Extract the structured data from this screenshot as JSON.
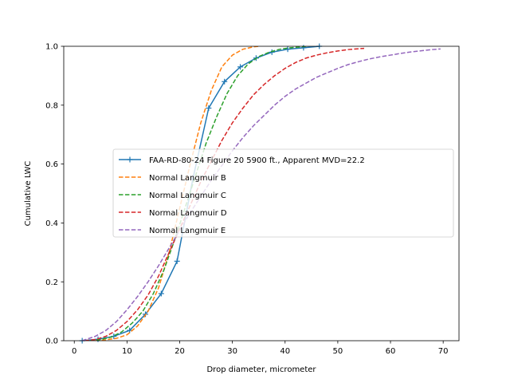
{
  "chart_data": {
    "type": "line",
    "title": "",
    "xlabel": "Drop diameter, micrometer",
    "ylabel": "Cumulative LWC",
    "xlim": [
      -2,
      73
    ],
    "ylim": [
      0,
      1.0
    ],
    "xticks": [
      0,
      10,
      20,
      30,
      40,
      50,
      60,
      70
    ],
    "yticks": [
      0.0,
      0.2,
      0.4,
      0.6,
      0.8,
      1.0
    ],
    "grid": false,
    "legend_position": "center-right",
    "series": [
      {
        "name": "FAA-RD-80-24 Figure 20 5900 ft., Apparent MVD=22.2",
        "color": "#1f77b4",
        "style": "solid",
        "marker": "+",
        "x": [
          1.5,
          4.5,
          7.5,
          10.5,
          13.5,
          16.5,
          19.5,
          22.5,
          25.5,
          28.5,
          31.5,
          34.5,
          37.5,
          40.5,
          43.5,
          46.5
        ],
        "y": [
          0.0,
          0.005,
          0.015,
          0.035,
          0.09,
          0.16,
          0.27,
          0.55,
          0.79,
          0.88,
          0.93,
          0.96,
          0.98,
          0.99,
          0.995,
          1.0
        ]
      },
      {
        "name": "Normal Langmuir B",
        "color": "#ff7f0e",
        "style": "dashed",
        "x": [
          4,
          6,
          8,
          10,
          12,
          14,
          16,
          18,
          20,
          22,
          24,
          26,
          28,
          30,
          32,
          34,
          35
        ],
        "y": [
          0.0,
          0.003,
          0.008,
          0.02,
          0.05,
          0.1,
          0.18,
          0.3,
          0.45,
          0.6,
          0.74,
          0.85,
          0.93,
          0.97,
          0.99,
          0.998,
          1.0
        ]
      },
      {
        "name": "Normal Langmuir C",
        "color": "#2ca02c",
        "style": "dashed",
        "x": [
          3,
          5,
          7,
          9,
          11,
          13,
          15,
          17,
          19,
          21,
          23,
          25,
          27,
          29,
          31,
          33,
          35,
          37,
          39,
          41,
          43,
          44
        ],
        "y": [
          0.0,
          0.004,
          0.012,
          0.03,
          0.06,
          0.1,
          0.16,
          0.24,
          0.34,
          0.45,
          0.56,
          0.67,
          0.76,
          0.84,
          0.9,
          0.94,
          0.965,
          0.98,
          0.99,
          0.995,
          0.998,
          1.0
        ]
      },
      {
        "name": "Normal Langmuir D",
        "color": "#d62728",
        "style": "dashed",
        "x": [
          2,
          4,
          6,
          8,
          10,
          12,
          14,
          16,
          18,
          20,
          22,
          24,
          26,
          28,
          30,
          32,
          34,
          36,
          38,
          40,
          42,
          44,
          46,
          48,
          50,
          52,
          55
        ],
        "y": [
          0.0,
          0.004,
          0.015,
          0.035,
          0.065,
          0.105,
          0.155,
          0.22,
          0.3,
          0.38,
          0.46,
          0.54,
          0.61,
          0.68,
          0.74,
          0.79,
          0.835,
          0.87,
          0.9,
          0.925,
          0.945,
          0.96,
          0.97,
          0.978,
          0.984,
          0.989,
          0.993
        ]
      },
      {
        "name": "Normal Langmuir E",
        "color": "#9467bd",
        "style": "dashed",
        "x": [
          1.5,
          4,
          6,
          8,
          10,
          12,
          14,
          16,
          18,
          20,
          22,
          24,
          26,
          28,
          30,
          32,
          34,
          36,
          38,
          40,
          42,
          44,
          46,
          48,
          50,
          52,
          54,
          56,
          58,
          60,
          62,
          64,
          66,
          68,
          69.5
        ],
        "y": [
          0.0,
          0.015,
          0.035,
          0.065,
          0.105,
          0.15,
          0.2,
          0.255,
          0.315,
          0.375,
          0.435,
          0.49,
          0.545,
          0.595,
          0.645,
          0.69,
          0.73,
          0.765,
          0.8,
          0.83,
          0.855,
          0.875,
          0.895,
          0.91,
          0.925,
          0.938,
          0.948,
          0.957,
          0.964,
          0.97,
          0.976,
          0.981,
          0.985,
          0.989,
          0.991
        ]
      }
    ]
  }
}
